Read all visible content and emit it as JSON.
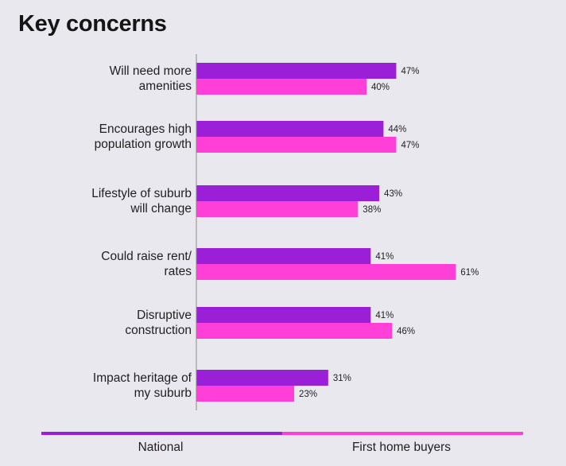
{
  "chart_data": {
    "type": "bar",
    "orientation": "horizontal",
    "title": "Key concerns",
    "categories": [
      [
        "Will need more",
        "amenities"
      ],
      [
        "Encourages high",
        "population growth"
      ],
      [
        "Lifestyle of suburb",
        "will change"
      ],
      [
        "Could raise rent/",
        "rates"
      ],
      [
        "Disruptive",
        "construction"
      ],
      [
        "Impact heritage of",
        "my suburb"
      ]
    ],
    "series": [
      {
        "name": "National",
        "color": "#9a1fd6",
        "values": [
          47,
          44,
          43,
          41,
          41,
          31
        ]
      },
      {
        "name": "First home buyers",
        "color": "#ff3fd8",
        "values": [
          40,
          47,
          38,
          61,
          46,
          23
        ]
      }
    ],
    "value_suffix": "%",
    "xlim": [
      0,
      100
    ],
    "grid": false,
    "legend_position": "bottom"
  }
}
